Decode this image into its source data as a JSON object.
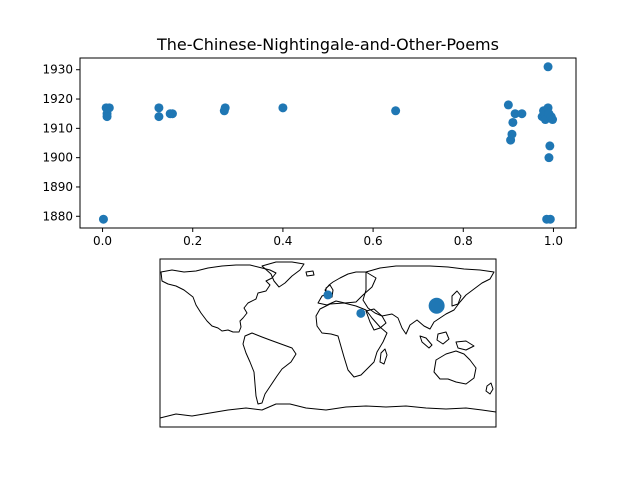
{
  "chart_data": [
    {
      "type": "scatter",
      "title": "The-Chinese-Nightingale-and-Other-Poems",
      "xlabel": "",
      "ylabel": "",
      "xlim": [
        -0.05,
        1.05
      ],
      "ylim": [
        1876,
        1934
      ],
      "xticks": [
        0.0,
        0.2,
        0.4,
        0.6,
        0.8,
        1.0
      ],
      "xtick_labels": [
        "0.0",
        "0.2",
        "0.4",
        "0.6",
        "0.8",
        "1.0"
      ],
      "yticks": [
        1880,
        1890,
        1900,
        1910,
        1920,
        1930
      ],
      "ytick_labels": [
        "1880",
        "1890",
        "1900",
        "1910",
        "1920",
        "1930"
      ],
      "grid": false,
      "color": "#1f77b4",
      "series": [
        {
          "points": [
            [
              0.002,
              1879
            ],
            [
              0.008,
              1917
            ],
            [
              0.01,
              1915
            ],
            [
              0.01,
              1914
            ],
            [
              0.015,
              1917
            ],
            [
              0.125,
              1917
            ],
            [
              0.125,
              1914
            ],
            [
              0.15,
              1915
            ],
            [
              0.155,
              1915
            ],
            [
              0.27,
              1916
            ],
            [
              0.272,
              1917
            ],
            [
              0.4,
              1917
            ],
            [
              0.65,
              1916
            ],
            [
              0.9,
              1918
            ],
            [
              0.905,
              1906
            ],
            [
              0.908,
              1908
            ],
            [
              0.91,
              1912
            ],
            [
              0.915,
              1915
            ],
            [
              0.93,
              1915
            ],
            [
              0.975,
              1914
            ],
            [
              0.978,
              1916
            ],
            [
              0.98,
              1915
            ],
            [
              0.982,
              1913
            ],
            [
              0.985,
              1879
            ],
            [
              0.988,
              1931
            ],
            [
              0.988,
              1917
            ],
            [
              0.99,
              1915
            ],
            [
              0.99,
              1900
            ],
            [
              0.992,
              1904
            ],
            [
              0.993,
              1879
            ],
            [
              0.995,
              1914
            ],
            [
              0.998,
              1913
            ]
          ]
        }
      ]
    },
    {
      "type": "map",
      "projection": "plate-carree",
      "extent": {
        "lon": [
          -180,
          180
        ],
        "lat": [
          -90,
          90
        ]
      },
      "color": "#1f77b4",
      "markers": [
        {
          "lon": 116.4,
          "lat": 39.9,
          "size": 8
        },
        {
          "lon": -0.1,
          "lat": 51.5,
          "size": 4.5
        },
        {
          "lon": 35.2,
          "lat": 31.8,
          "size": 4.5
        }
      ]
    }
  ]
}
